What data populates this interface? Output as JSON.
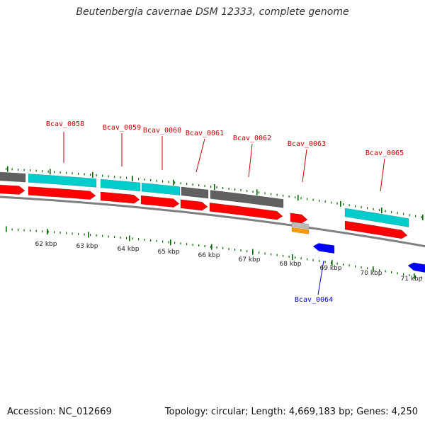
{
  "title": "Beutenbergia cavernae DSM 12333, complete genome",
  "footer": {
    "accession": "Accession: NC_012669",
    "summary": "Topology: circular; Length: 4,669,183 bp; Genes: 4,250"
  },
  "colors": {
    "backbone": "#808080",
    "cds_forward": "#ff0000",
    "cds_reverse": "#0000ff",
    "gene_feature": "#00cccc",
    "gene_other": "#606060",
    "rna_feature": "#ff9900",
    "rna_other": "#bbbbbb",
    "tick": "#006600",
    "label_forward": "#cc0000",
    "label_reverse": "#0000cc"
  },
  "kbp_labels": [
    "62 kbp",
    "63 kbp",
    "64 kbp",
    "65 kbp",
    "66 kbp",
    "67 kbp",
    "68 kbp",
    "69 kbp",
    "70 kbp",
    "71 kbp"
  ],
  "gene_labels": [
    {
      "text": "Bcav_0058",
      "strand": "forward"
    },
    {
      "text": "Bcav_0059",
      "strand": "forward"
    },
    {
      "text": "Bcav_0060",
      "strand": "forward"
    },
    {
      "text": "Bcav_0061",
      "strand": "forward"
    },
    {
      "text": "Bcav_0062",
      "strand": "forward"
    },
    {
      "text": "Bcav_0063",
      "strand": "forward"
    },
    {
      "text": "Bcav_0064",
      "strand": "reverse"
    },
    {
      "text": "Bcav_0065",
      "strand": "forward"
    }
  ]
}
